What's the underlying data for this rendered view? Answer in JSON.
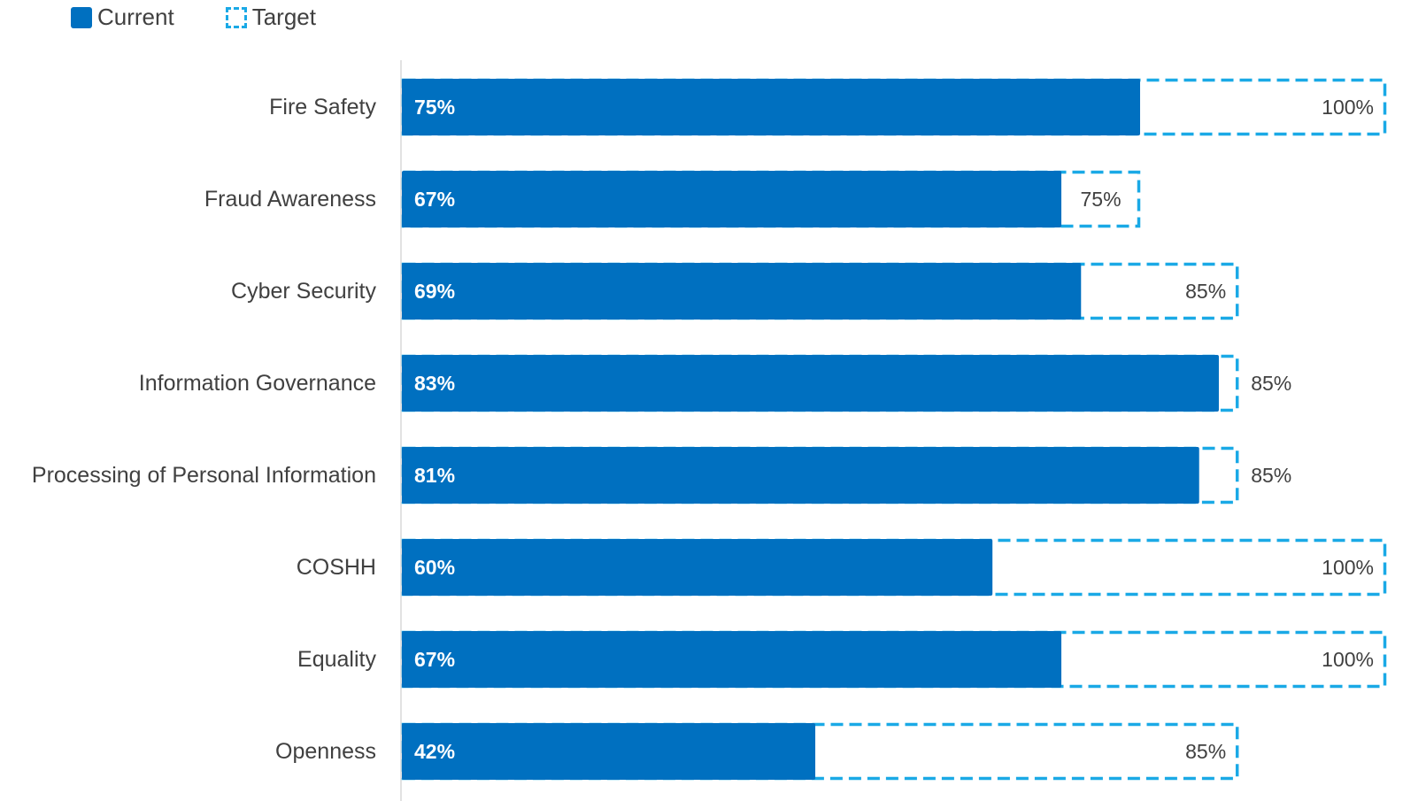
{
  "colors": {
    "current": "#0070C0",
    "target": "#1AA9E6",
    "axis": "#D9D9D9",
    "category_text": "#404040",
    "value_text": "#404040",
    "current_label_text": "#FFFFFF"
  },
  "legend": {
    "current": "Current",
    "target": "Target"
  },
  "chart_data": {
    "type": "bar",
    "orientation": "horizontal",
    "categories": [
      "Fire Safety",
      "Fraud Awareness",
      "Cyber Security",
      "Information Governance",
      "Processing of Personal Information",
      "COSHH",
      "Equality",
      "Openness"
    ],
    "series": [
      {
        "name": "Current",
        "values": [
          75,
          67,
          69,
          83,
          81,
          60,
          67,
          42
        ],
        "labels": [
          "75%",
          "67%",
          "69%",
          "83%",
          "81%",
          "60%",
          "67%",
          "42%"
        ]
      },
      {
        "name": "Target",
        "values": [
          100,
          75,
          85,
          85,
          85,
          100,
          100,
          85
        ],
        "labels": [
          "100%",
          "75%",
          "85%",
          "85%",
          "85%",
          "100%",
          "100%",
          "85%"
        ]
      }
    ],
    "xlim": [
      0,
      100
    ],
    "legend_position": "top-left",
    "grid": false
  }
}
